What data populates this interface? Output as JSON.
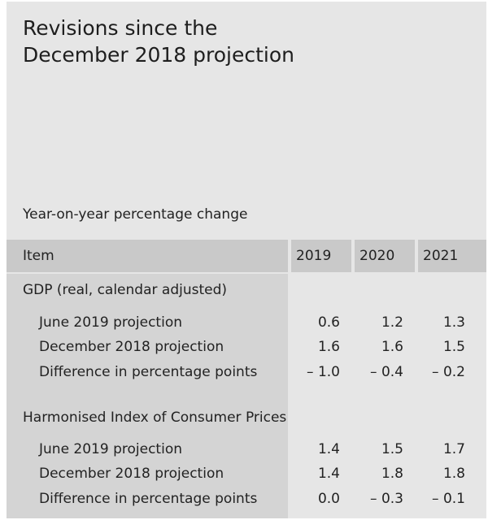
{
  "title": "Revisions since the\nDecember 2018 projection",
  "subtitle": "Year-on-year percentage change",
  "header": {
    "item": "Item",
    "years": [
      "2019",
      "2020",
      "2021"
    ]
  },
  "sections": [
    {
      "heading": "GDP (real, calendar adjusted)",
      "rows": [
        {
          "label": "June 2019 projection",
          "values": [
            "0.6",
            "1.2",
            "1.3"
          ]
        },
        {
          "label": "December 2018 projection",
          "values": [
            "1.6",
            "1.6",
            "1.5"
          ]
        },
        {
          "label": "Difference in percentage points",
          "values": [
            "– 1.0",
            "– 0.4",
            "– 0.2"
          ]
        }
      ]
    },
    {
      "heading": "Harmonised Index of Consumer Prices",
      "rows": [
        {
          "label": "June 2019 projection",
          "values": [
            "1.4",
            "1.5",
            "1.7"
          ]
        },
        {
          "label": "December 2018 projection",
          "values": [
            "1.4",
            "1.8",
            "1.8"
          ]
        },
        {
          "label": "Difference in percentage points",
          "values": [
            "0.0",
            "– 0.3",
            "– 0.1"
          ]
        }
      ]
    }
  ]
}
